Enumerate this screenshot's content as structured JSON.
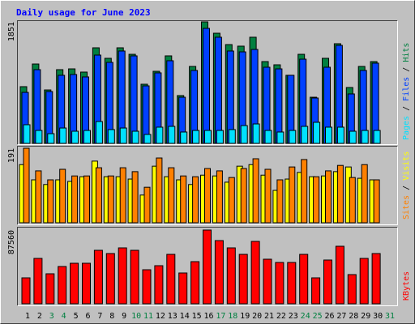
{
  "title": "Daily usage for June 2023",
  "legend_separator": " / ",
  "chart_data": [
    {
      "type": "bar",
      "ylim": [
        0,
        1851
      ],
      "yticks": [
        1851
      ],
      "series": [
        {
          "name": "Hits",
          "color": "#008040",
          "values": [
            864,
            1209,
            814,
            1123,
            1135,
            1086,
            1456,
            1296,
            1456,
            1357,
            901,
            1098,
            1333,
            728,
            1172,
            1851,
            1678,
            1505,
            1481,
            1617,
            1246,
            1197,
            1037,
            1357,
            703,
            1296,
            1518,
            851,
            1172,
            1246,
            null
          ]
        },
        {
          "name": "Files",
          "color": "#0040ff",
          "values": [
            777,
            1123,
            790,
            1037,
            1049,
            1012,
            1345,
            1234,
            1407,
            1333,
            876,
            1074,
            1259,
            703,
            1111,
            1752,
            1617,
            1407,
            1394,
            1431,
            1160,
            1135,
            1037,
            1283,
            691,
            1160,
            1493,
            753,
            1111,
            1222,
            null
          ]
        },
        {
          "name": "Pages",
          "color": "#00e0ff",
          "values": [
            284,
            197,
            148,
            234,
            185,
            197,
            333,
            210,
            234,
            185,
            136,
            247,
            259,
            173,
            197,
            197,
            197,
            210,
            271,
            296,
            197,
            173,
            197,
            259,
            321,
            247,
            247,
            185,
            197,
            197,
            null
          ]
        }
      ]
    },
    {
      "type": "bar",
      "ylim": [
        0,
        191
      ],
      "yticks": [
        191
      ],
      "series": [
        {
          "name": "Visits",
          "color": "#ffff00",
          "values": [
            149,
            110,
            98,
            110,
            106,
            118,
            158,
            118,
            118,
            112,
            71,
            145,
            118,
            110,
            98,
            122,
            120,
            104,
            145,
            149,
            122,
            83,
            112,
            129,
            118,
            120,
            131,
            143,
            114,
            110,
            null
          ]
        },
        {
          "name": "Sites",
          "color": "#ff8000",
          "values": [
            191,
            133,
            110,
            137,
            120,
            120,
            141,
            120,
            141,
            131,
            91,
            166,
            141,
            120,
            118,
            139,
            133,
            116,
            139,
            164,
            137,
            110,
            143,
            162,
            118,
            133,
            147,
            116,
            149,
            110,
            null
          ]
        }
      ]
    },
    {
      "type": "bar",
      "ylim": [
        0,
        87560
      ],
      "yticks": [
        87560
      ],
      "categories": [
        "1",
        "2",
        "3",
        "4",
        "5",
        "6",
        "7",
        "8",
        "9",
        "10",
        "11",
        "12",
        "13",
        "14",
        "15",
        "16",
        "17",
        "18",
        "19",
        "20",
        "21",
        "22",
        "23",
        "24",
        "25",
        "26",
        "27",
        "28",
        "29",
        "30",
        "31"
      ],
      "category_colors": [
        "#000000",
        "#000000",
        "#008040",
        "#008040",
        "#000000",
        "#000000",
        "#000000",
        "#000000",
        "#000000",
        "#008040",
        "#008040",
        "#000000",
        "#000000",
        "#000000",
        "#000000",
        "#000000",
        "#008040",
        "#008040",
        "#000000",
        "#000000",
        "#000000",
        "#000000",
        "#000000",
        "#008040",
        "#008040",
        "#000000",
        "#000000",
        "#000000",
        "#000000",
        "#000000",
        "#008040"
      ],
      "series": [
        {
          "name": "KBytes",
          "color": "#ff0000",
          "values": [
            30784,
            53872,
            35594,
            44252,
            48100,
            48100,
            63492,
            59644,
            66378,
            63492,
            40404,
            45214,
            58682,
            36556,
            50024,
            87560,
            75036,
            66378,
            58682,
            74074,
            52910,
            49062,
            49062,
            58682,
            30784,
            51948,
            68302,
            34632,
            53872,
            59644,
            null
          ]
        }
      ]
    }
  ]
}
